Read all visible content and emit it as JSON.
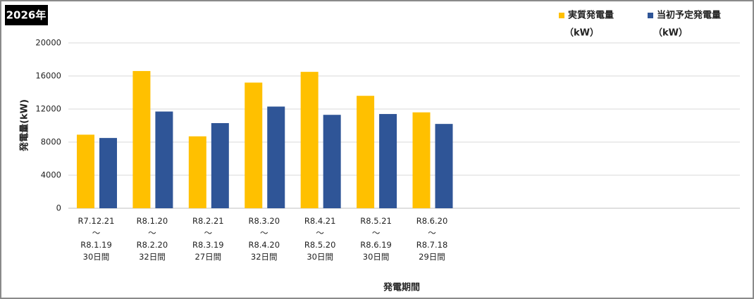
{
  "chart_data": {
    "type": "bar",
    "title": "2026年",
    "y_label": "発電量(kW)",
    "x_label": "発電期間",
    "legend_unit": "（kW）",
    "categories": [
      "R7.12.21\n～\nR8.1.19\n30日間",
      "R8.1.20\n～\nR8.2.20\n32日間",
      "R8.2.21\n～\nR8.3.19\n27日間",
      "R8.3.20\n～\nR8.4.20\n32日間",
      "R8.4.21\n～\nR8.5.20\n30日間",
      "R8.5.21\n～\nR8.6.19\n30日間",
      "R8.6.20\n～\nR8.7.18\n29日間",
      null,
      null,
      null,
      null,
      null
    ],
    "series": [
      {
        "name": "実質発電量",
        "color": "#FFC000",
        "values": [
          8900,
          16600,
          8700,
          15200,
          16500,
          13600,
          11600,
          null,
          null,
          null,
          null,
          null
        ]
      },
      {
        "name": "当初予定発電量",
        "color": "#2F5597",
        "values": [
          8500,
          11700,
          10300,
          12300,
          11300,
          11400,
          10200,
          null,
          null,
          null,
          null,
          null
        ]
      }
    ],
    "ylim": [
      0,
      20000
    ],
    "yticks": [
      0,
      4000,
      8000,
      12000,
      16000,
      20000
    ],
    "grid": true
  }
}
